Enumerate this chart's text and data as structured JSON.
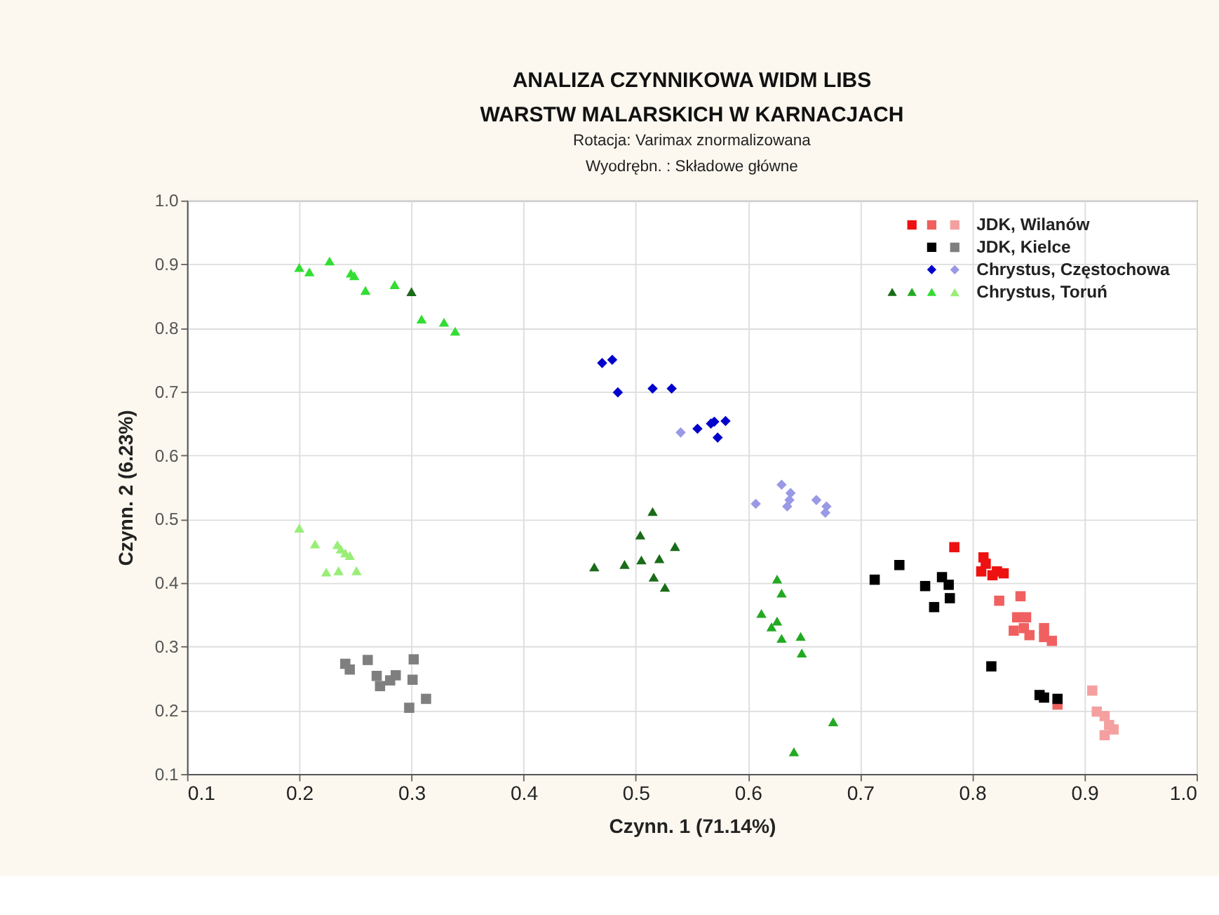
{
  "chart_data": {
    "type": "scatter",
    "title": "ANALIZA CZYNNIKOWA WIDM LIBS\nWARSTW MALARSKICH W KARNACJACH",
    "subtitle": "Rotacja: Varimax znormalizowana\nWyodrębn. : Składowe główne",
    "xlabel": "Czynn. 1 (71.14%)",
    "ylabel": "Czynn. 2 (6.23%)",
    "xlim": [
      0.1,
      1.0
    ],
    "ylim": [
      0.1,
      1.0
    ],
    "xticks": [
      0.1,
      0.2,
      0.3,
      0.4,
      0.5,
      0.6,
      0.7,
      0.8,
      0.9,
      {
        "value": 1,
        "label": "1.0"
      }
    ],
    "yticks": [
      0.1,
      0.2,
      0.3,
      0.4,
      0.5,
      0.6,
      0.7,
      0.8,
      0.9,
      {
        "value": 1,
        "label": "1.0"
      }
    ],
    "grid": true,
    "legend": "top right",
    "series": [
      {
        "color": "#ee1111",
        "marker": "square",
        "x": [
          0.784,
          0.81,
          0.812,
          0.818,
          0.822,
          0.828,
          0.808
        ],
        "values": [
          0.456,
          0.44,
          0.43,
          0.412,
          0.418,
          0.415,
          0.418
        ]
      },
      {
        "color": "#f06060",
        "marker": "square",
        "x": [
          0.824,
          0.843,
          0.84,
          0.848,
          0.846,
          0.851,
          0.864,
          0.864,
          0.871,
          0.837,
          0.876
        ],
        "values": [
          0.372,
          0.379,
          0.346,
          0.346,
          0.329,
          0.318,
          0.329,
          0.315,
          0.309,
          0.325,
          0.209
        ]
      },
      {
        "name": "JDK, Wilanów",
        "color": "#f4a0a0",
        "marker": "square",
        "x": [
          0.907,
          0.911,
          0.918,
          0.922,
          0.926,
          0.918
        ],
        "values": [
          0.231,
          0.198,
          0.191,
          0.177,
          0.17,
          0.161
        ]
      },
      {
        "color": "#000000",
        "marker": "square",
        "x": [
          0.713,
          0.735,
          0.758,
          0.773,
          0.779,
          0.78,
          0.766,
          0.817,
          0.86,
          0.864,
          0.876
        ],
        "values": [
          0.405,
          0.428,
          0.395,
          0.409,
          0.397,
          0.376,
          0.362,
          0.269,
          0.224,
          0.22,
          0.218
        ]
      },
      {
        "name": "JDK, Kielce",
        "color": "#7f7f7f",
        "marker": "square",
        "x": [
          0.241,
          0.245,
          0.261,
          0.269,
          0.272,
          0.281,
          0.286,
          0.302,
          0.301,
          0.313,
          0.298
        ],
        "values": [
          0.273,
          0.264,
          0.279,
          0.254,
          0.238,
          0.247,
          0.255,
          0.28,
          0.248,
          0.218,
          0.204
        ]
      },
      {
        "color": "#0000cc",
        "marker": "diamond",
        "x": [
          0.47,
          0.479,
          0.484,
          0.515,
          0.532,
          0.555,
          0.567,
          0.57,
          0.58,
          0.573
        ],
        "values": [
          0.745,
          0.75,
          0.699,
          0.705,
          0.705,
          0.642,
          0.65,
          0.653,
          0.654,
          0.628
        ]
      },
      {
        "name": "Chrystus, Częstochowa",
        "color": "#9999e6",
        "marker": "diamond",
        "x": [
          0.54,
          0.607,
          0.63,
          0.638,
          0.637,
          0.635,
          0.661,
          0.67,
          0.669
        ],
        "values": [
          0.636,
          0.524,
          0.554,
          0.541,
          0.53,
          0.52,
          0.53,
          0.52,
          0.51
        ]
      },
      {
        "color": "#1a6b1a",
        "marker": "triangle",
        "x": [
          0.3,
          0.463,
          0.49,
          0.504,
          0.515,
          0.505,
          0.521,
          0.535,
          0.516,
          0.526
        ],
        "values": [
          0.857,
          0.425,
          0.429,
          0.475,
          0.512,
          0.436,
          0.438,
          0.457,
          0.409,
          0.393
        ]
      },
      {
        "color": "#22aa22",
        "marker": "triangle",
        "x": [
          0.626,
          0.63,
          0.612,
          0.626,
          0.621,
          0.63,
          0.647,
          0.648,
          0.676,
          0.641
        ],
        "values": [
          0.406,
          0.384,
          0.352,
          0.34,
          0.331,
          0.313,
          0.316,
          0.29,
          0.182,
          0.135
        ]
      },
      {
        "color": "#33dd33",
        "marker": "triangle",
        "x": [
          0.2,
          0.209,
          0.227,
          0.246,
          0.249,
          0.259,
          0.285,
          0.309,
          0.329,
          0.339
        ],
        "values": [
          0.895,
          0.888,
          0.905,
          0.886,
          0.882,
          0.859,
          0.868,
          0.814,
          0.809,
          0.795
        ]
      },
      {
        "name": "Chrystus, Toruń",
        "color": "#99ee77",
        "marker": "triangle",
        "x": [
          0.2,
          0.214,
          0.234,
          0.237,
          0.241,
          0.245,
          0.224,
          0.235,
          0.251
        ],
        "values": [
          0.486,
          0.461,
          0.46,
          0.453,
          0.447,
          0.443,
          0.417,
          0.419,
          0.419
        ]
      }
    ]
  }
}
